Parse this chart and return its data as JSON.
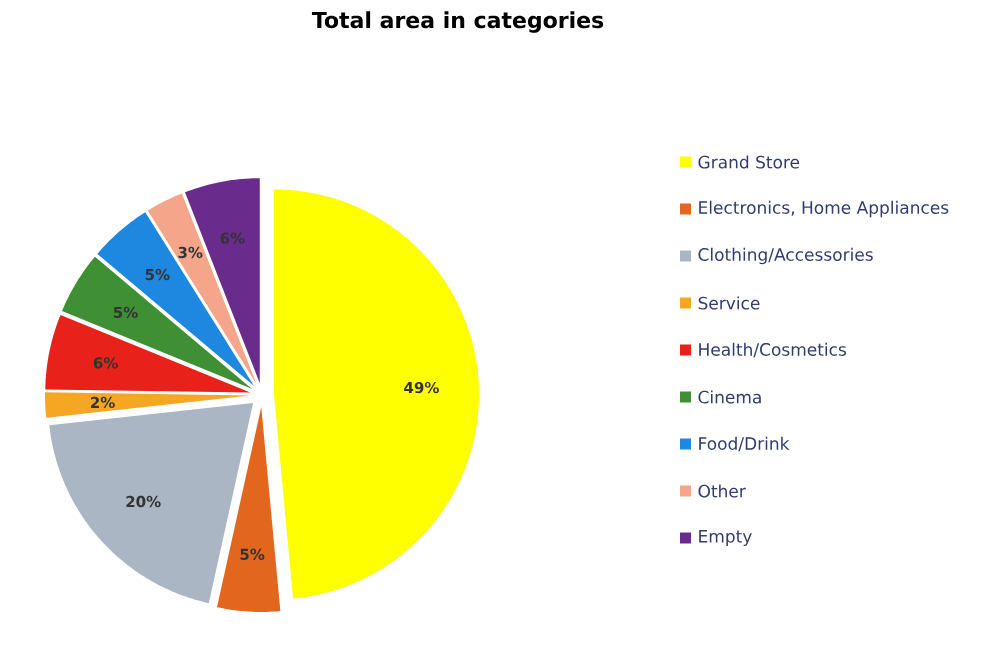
{
  "chart_data": {
    "type": "pie",
    "title": "Total area in categories",
    "categories": [
      "Grand Store",
      "Electronics, Home Appliances",
      "Clothing/Accessories",
      "Service",
      "Health/Cosmetics",
      "Cinema",
      "Food/Drink",
      "Other",
      "Empty"
    ],
    "values": [
      49,
      5,
      20,
      2,
      6,
      5,
      5,
      3,
      6
    ],
    "value_labels": [
      "49%",
      "5%",
      "20%",
      "2%",
      "6%",
      "5%",
      "5%",
      "3%",
      "6%"
    ],
    "colors": [
      "#ffff00",
      "#e2661e",
      "#aab6c4",
      "#f5a623",
      "#e8221a",
      "#3f8f35",
      "#1e88e0",
      "#f4a58a",
      "#6a2c8c"
    ],
    "legend": "right"
  }
}
